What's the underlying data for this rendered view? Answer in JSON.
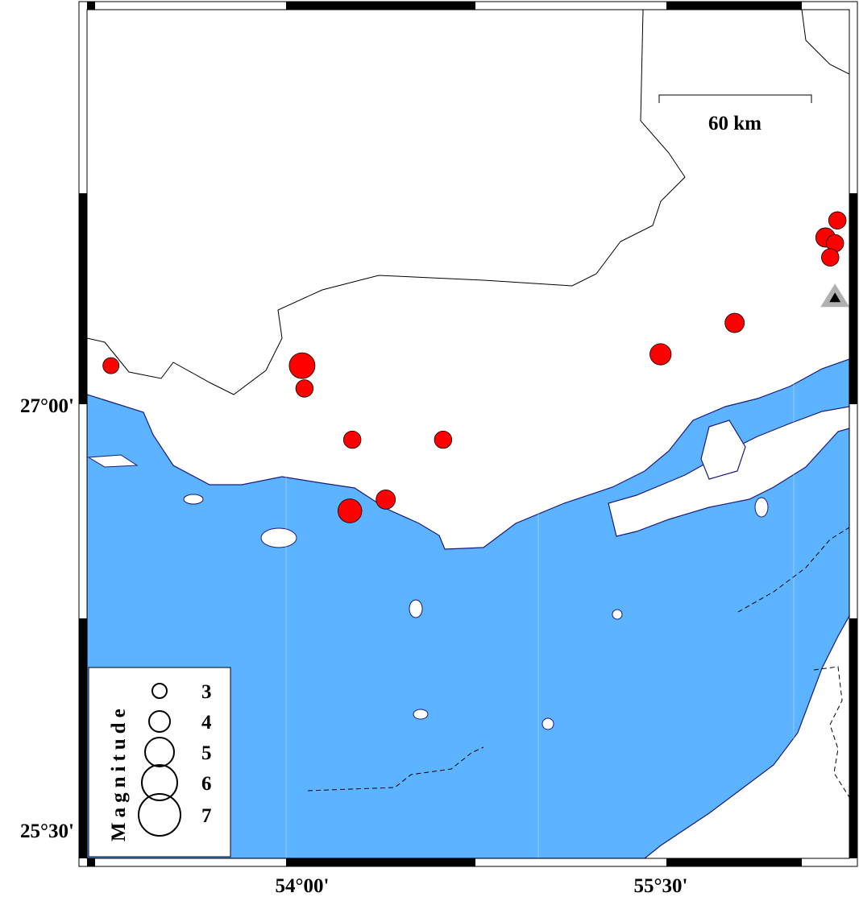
{
  "map": {
    "region": {
      "lon_min": 53.1,
      "lon_max": 56.29,
      "lat_min": 25.43,
      "lat_max": 28.41
    },
    "colors": {
      "sea": "#5cb3ff",
      "land": "#ffffff",
      "coast": "#1a1a80",
      "event": "#ff0000",
      "station": "#b0b0b0"
    },
    "axis_labels": {
      "lat": [
        {
          "value": 27.0,
          "text": "27°00'"
        },
        {
          "value": 25.5,
          "text": "25°30'"
        }
      ],
      "lon": [
        {
          "value": 54.0,
          "text": "54°00'"
        },
        {
          "value": 55.5,
          "text": "55°30'"
        }
      ]
    },
    "scale_bar": {
      "label": "60 km",
      "length_km": 60
    },
    "events": [
      {
        "lon": 53.2,
        "lat": 27.16,
        "mag": 3.0
      },
      {
        "lon": 54.0,
        "lat": 27.16,
        "mag": 4.5
      },
      {
        "lon": 54.01,
        "lat": 27.08,
        "mag": 3.2
      },
      {
        "lon": 54.21,
        "lat": 26.9,
        "mag": 3.2
      },
      {
        "lon": 54.59,
        "lat": 26.9,
        "mag": 3.2
      },
      {
        "lon": 54.35,
        "lat": 26.69,
        "mag": 3.5
      },
      {
        "lon": 54.2,
        "lat": 26.65,
        "mag": 4.2
      },
      {
        "lon": 55.5,
        "lat": 27.2,
        "mag": 3.8
      },
      {
        "lon": 55.81,
        "lat": 27.31,
        "mag": 3.5
      },
      {
        "lon": 56.24,
        "lat": 27.67,
        "mag": 3.2
      },
      {
        "lon": 56.19,
        "lat": 27.61,
        "mag": 3.5
      },
      {
        "lon": 56.23,
        "lat": 27.59,
        "mag": 3.2
      },
      {
        "lon": 56.21,
        "lat": 27.54,
        "mag": 3.2
      }
    ],
    "station": {
      "lon": 56.23,
      "lat": 27.4,
      "symbol": "triangle"
    }
  },
  "legend": {
    "title": "Magnitude",
    "items": [
      {
        "mag": 3,
        "label": "3"
      },
      {
        "mag": 4,
        "label": "4"
      },
      {
        "mag": 5,
        "label": "5"
      },
      {
        "mag": 6,
        "label": "6"
      },
      {
        "mag": 7,
        "label": "7"
      }
    ]
  }
}
